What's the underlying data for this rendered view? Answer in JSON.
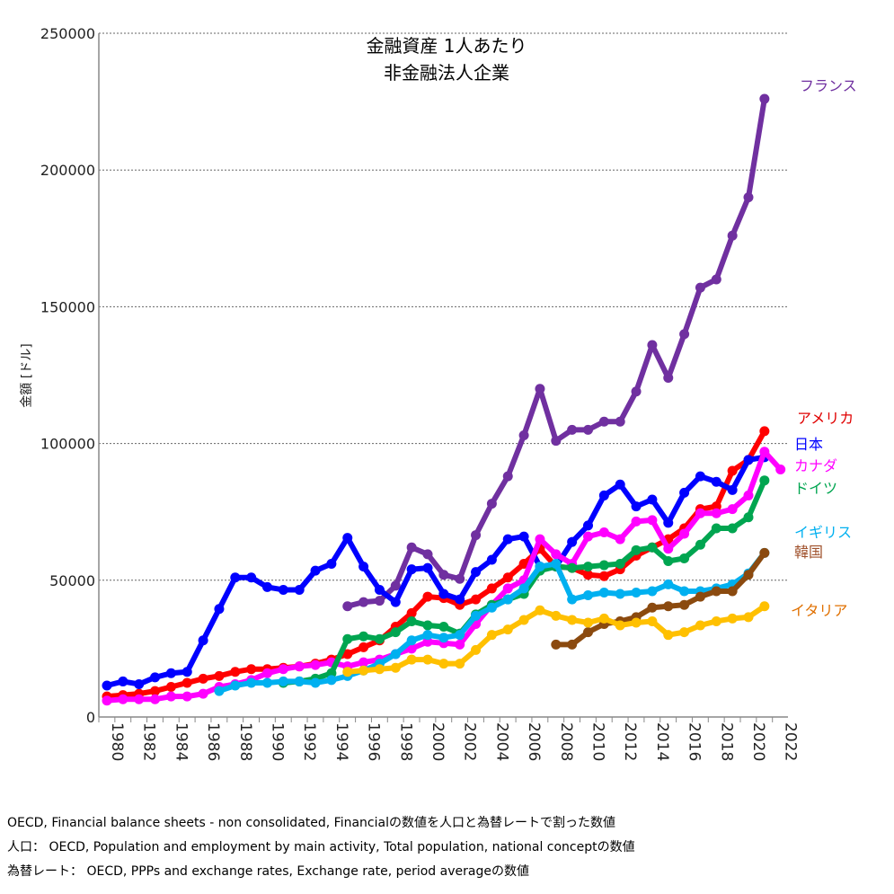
{
  "chart_data": {
    "type": "line",
    "title": [
      "金融資産 1人あたり",
      "非金融法人企業"
    ],
    "ylabel": "金額 [ドル]",
    "xlabel": "",
    "ylim": [
      0,
      250000
    ],
    "yticks": [
      0,
      50000,
      100000,
      150000,
      200000,
      250000
    ],
    "xlim": [
      1980,
      2022
    ],
    "xticks": [
      1980,
      1982,
      1984,
      1986,
      1988,
      1990,
      1992,
      1994,
      1996,
      1998,
      2000,
      2002,
      2004,
      2006,
      2008,
      2010,
      2012,
      2014,
      2016,
      2018,
      2020,
      2022
    ],
    "grid": "horizontal dotted",
    "legend": "right, labels at line ends",
    "series": [
      {
        "name": "フランス",
        "color": "#7030A0",
        "labelColor": "#7030A0",
        "start": 1995,
        "values": [
          40500,
          42000,
          42500,
          48000,
          62000,
          59500,
          52000,
          50500,
          66500,
          78000,
          88000,
          103000,
          120000,
          101000,
          105000,
          105000,
          108000,
          108000,
          119000,
          136000,
          124000,
          140000,
          157000,
          160000,
          176000,
          190000,
          226000
        ]
      },
      {
        "name": "アメリカ",
        "color": "#FF0000",
        "labelColor": "#E00000",
        "start": 1980,
        "values": [
          7500,
          8000,
          8500,
          9500,
          11000,
          12500,
          14000,
          15000,
          16500,
          17500,
          17500,
          18000,
          18500,
          19500,
          21000,
          23000,
          25500,
          28000,
          33000,
          38000,
          44000,
          43500,
          41000,
          43000,
          47000,
          51000,
          56000,
          61500,
          55000,
          54500,
          52000,
          51500,
          54000,
          59000,
          62000,
          65000,
          69000,
          76000,
          77000,
          90000,
          94000,
          104500
        ]
      },
      {
        "name": "日本",
        "color": "#0000FF",
        "labelColor": "#0000FF",
        "start": 1980,
        "values": [
          11500,
          13000,
          12000,
          14500,
          16000,
          16500,
          28000,
          39500,
          51000,
          51000,
          47500,
          46500,
          46500,
          53500,
          56000,
          65500,
          55000,
          46500,
          42000,
          54000,
          54500,
          45000,
          43000,
          53000,
          57500,
          65000,
          66000,
          55000,
          55000,
          64000,
          70000,
          81000,
          85000,
          77000,
          79500,
          71000,
          82000,
          88000,
          86000,
          83000,
          94000,
          95000
        ]
      },
      {
        "name": "カナダ",
        "color": "#FF00FF",
        "labelColor": "#FF00FF",
        "start": 1980,
        "values": [
          6000,
          6500,
          6500,
          6500,
          7500,
          7500,
          8500,
          11000,
          12000,
          13500,
          16000,
          17500,
          18500,
          19000,
          20000,
          18500,
          20000,
          21000,
          23000,
          25000,
          27500,
          27000,
          26500,
          34000,
          41000,
          47000,
          50000,
          65000,
          59500,
          56000,
          66000,
          67500,
          65000,
          71500,
          72000,
          61500,
          67000,
          74500,
          74500,
          76000,
          81000,
          97000,
          90500
        ]
      },
      {
        "name": "ドイツ",
        "color": "#00A550",
        "labelColor": "#00A550",
        "start": 1991,
        "values": [
          12500,
          13000,
          14000,
          16000,
          28500,
          29500,
          28500,
          31000,
          35000,
          33500,
          33000,
          30500,
          37500,
          41000,
          43000,
          45000,
          53500,
          55000,
          54500,
          55000,
          55500,
          56000,
          61000,
          62000,
          57000,
          58000,
          63000,
          69000,
          69000,
          73000,
          86500
        ]
      },
      {
        "name": "イギリス",
        "color": "#00B0F0",
        "labelColor": "#00B0F0",
        "start": 1987,
        "values": [
          9500,
          11500,
          12500,
          12500,
          13000,
          13000,
          12500,
          13500,
          15000,
          17000,
          19500,
          23000,
          28000,
          30000,
          29000,
          30000,
          37000,
          40000,
          43000,
          47000,
          55000,
          56000,
          43000,
          44500,
          45500,
          45000,
          45500,
          46000,
          48500,
          46000,
          46000,
          47000,
          48500,
          52500,
          60000
        ]
      },
      {
        "name": "韓国",
        "color": "#8B4A0F",
        "labelColor": "#A0522D",
        "start": 2008,
        "values": [
          26500,
          26500,
          31000,
          34000,
          35000,
          36500,
          40000,
          40500,
          41000,
          44000,
          46000,
          46000,
          52000,
          60000
        ]
      },
      {
        "name": "イタリア",
        "color": "#FFC000",
        "labelColor": "#E07000",
        "start": 1995,
        "values": [
          16500,
          17000,
          17500,
          18000,
          21000,
          21000,
          19500,
          19500,
          24500,
          30000,
          32000,
          35500,
          39000,
          37000,
          35500,
          34500,
          36000,
          33500,
          34500,
          35000,
          30000,
          31000,
          33500,
          35000,
          36000,
          36500,
          40500
        ]
      }
    ]
  },
  "footnotes": [
    "OECD, Financial balance sheets - non consolidated, Financialの数値を人口と為替レートで割った数値",
    "人口： OECD, Population and employment by main activity, Total population, national conceptの数値",
    "為替レート： OECD, PPPs and exchange rates, Exchange rate, period averageの数値"
  ]
}
